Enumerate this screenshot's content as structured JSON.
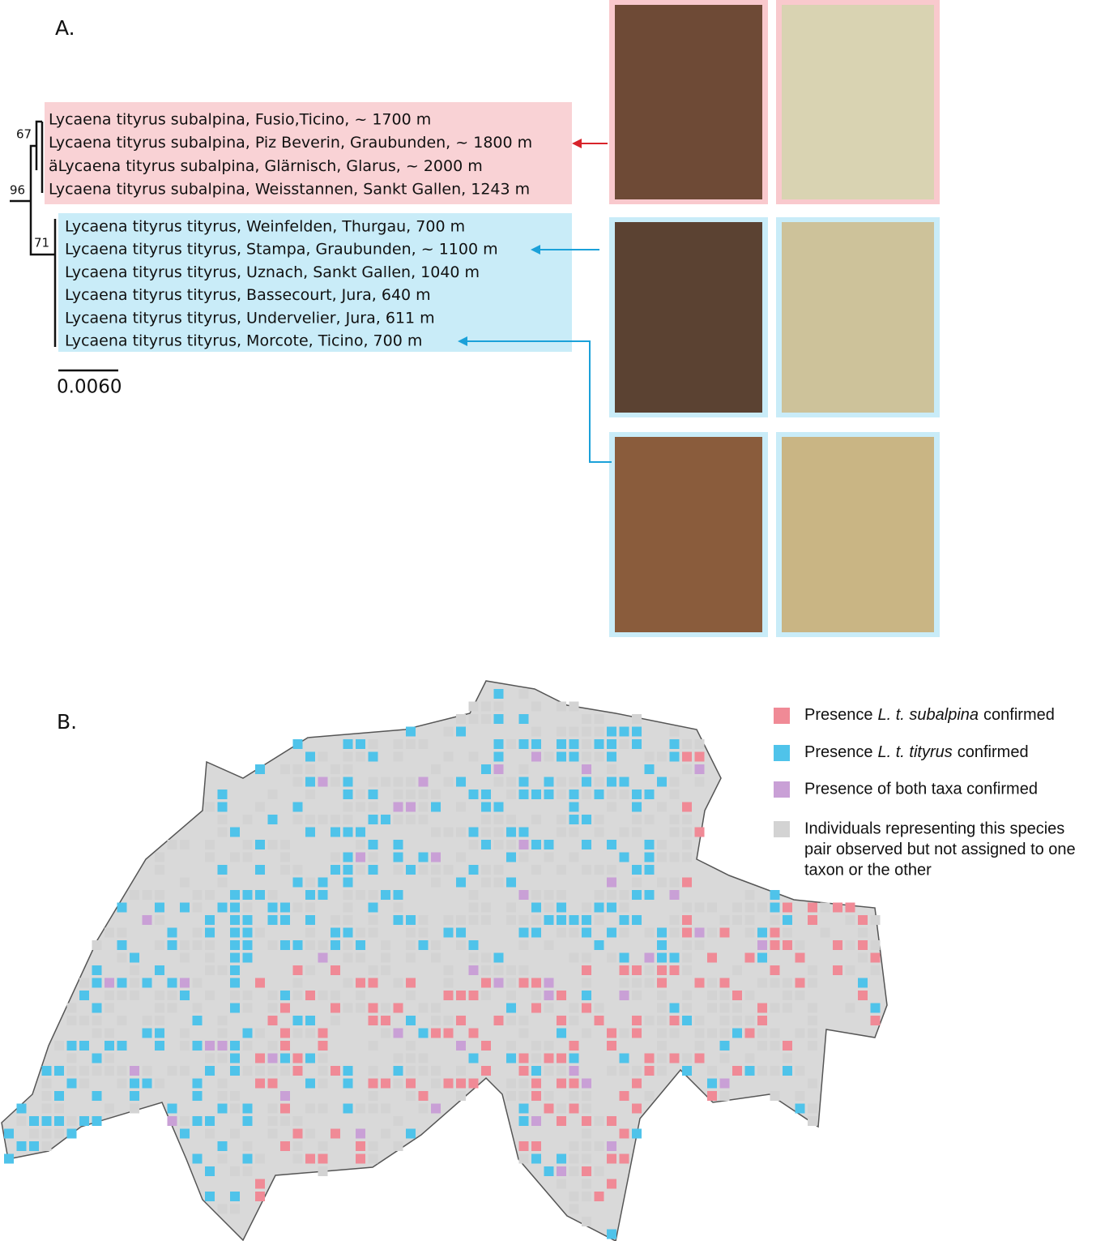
{
  "panel_a": {
    "label": "A.",
    "subalpina_labels": [
      "Lycaena tityrus subalpina, Fusio,Ticino, ~ 1700 m",
      "Lycaena tityrus subalpina, Piz Beverin, Graubunden, ~ 1800 m",
      "äLycaena tityrus subalpina, Glärnisch, Glarus, ~ 2000 m",
      "Lycaena tityrus subalpina, Weisstannen, Sankt Gallen, 1243 m"
    ],
    "tityrus_labels": [
      "Lycaena tityrus tityrus, Weinfelden, Thurgau, 700 m",
      "Lycaena tityrus tityrus, Stampa, Graubunden, ~ 1100 m",
      "Lycaena tityrus tityrus, Uznach, Sankt Gallen, 1040 m",
      "Lycaena tityrus tityrus, Bassecourt, Jura, 640 m",
      "Lycaena tityrus tityrus, Undervelier, Jura, 611 m",
      "Lycaena tityrus tityrus, Morcote, Ticino, 700 m"
    ],
    "bootstrap": [
      "67",
      "96",
      "71"
    ],
    "scale_bar": "0.0060"
  },
  "panel_b": {
    "label": "B.",
    "legend": [
      {
        "before": "Presence",
        "taxon": "L. t. subalpina",
        "after": "confirmed"
      },
      {
        "before": "Presence",
        "taxon": "L. t. tityrus",
        "after": "confirmed"
      },
      {
        "text": "Presence of both taxa confirmed"
      },
      {
        "lines": [
          "Individuals representing this species",
          "pair observed but not assigned to one",
          "taxon or the other"
        ]
      }
    ]
  }
}
